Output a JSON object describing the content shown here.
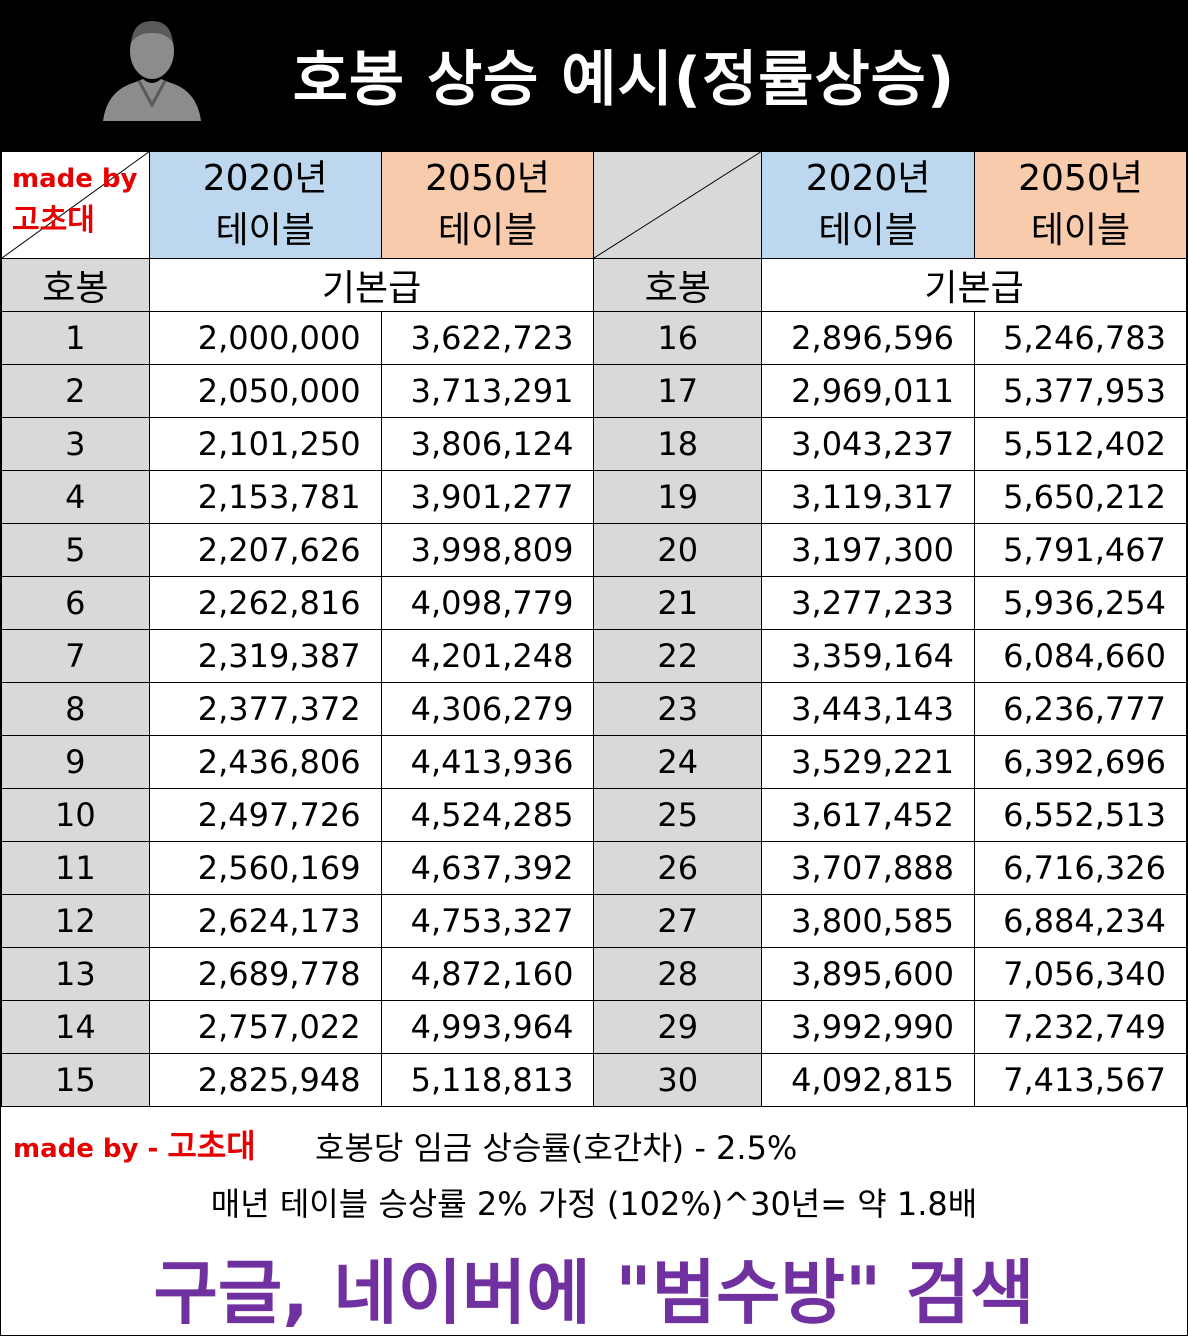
{
  "title": "호봉 상승 예시(정률상승)",
  "madeby_top": {
    "line1": "made by",
    "line2": "고초대"
  },
  "left_block": {
    "col1_header": [
      "2020년",
      "테이블"
    ],
    "col2_header": [
      "2050년",
      "테이블"
    ],
    "step_label": "호봉",
    "pay_label": "기본급",
    "rows": [
      [
        "1",
        "2,000,000",
        "3,622,723"
      ],
      [
        "2",
        "2,050,000",
        "3,713,291"
      ],
      [
        "3",
        "2,101,250",
        "3,806,124"
      ],
      [
        "4",
        "2,153,781",
        "3,901,277"
      ],
      [
        "5",
        "2,207,626",
        "3,998,809"
      ],
      [
        "6",
        "2,262,816",
        "4,098,779"
      ],
      [
        "7",
        "2,319,387",
        "4,201,248"
      ],
      [
        "8",
        "2,377,372",
        "4,306,279"
      ],
      [
        "9",
        "2,436,806",
        "4,413,936"
      ],
      [
        "10",
        "2,497,726",
        "4,524,285"
      ],
      [
        "11",
        "2,560,169",
        "4,637,392"
      ],
      [
        "12",
        "2,624,173",
        "4,753,327"
      ],
      [
        "13",
        "2,689,778",
        "4,872,160"
      ],
      [
        "14",
        "2,757,022",
        "4,993,964"
      ],
      [
        "15",
        "2,825,948",
        "5,118,813"
      ]
    ]
  },
  "right_block": {
    "col1_header": [
      "2020년",
      "테이블"
    ],
    "col2_header": [
      "2050년",
      "테이블"
    ],
    "step_label": "호봉",
    "pay_label": "기본급",
    "rows": [
      [
        "16",
        "2,896,596",
        "5,246,783"
      ],
      [
        "17",
        "2,969,011",
        "5,377,953"
      ],
      [
        "18",
        "3,043,237",
        "5,512,402"
      ],
      [
        "19",
        "3,119,317",
        "5,650,212"
      ],
      [
        "20",
        "3,197,300",
        "5,791,467"
      ],
      [
        "21",
        "3,277,233",
        "5,936,254"
      ],
      [
        "22",
        "3,359,164",
        "6,084,660"
      ],
      [
        "23",
        "3,443,143",
        "6,236,777"
      ],
      [
        "24",
        "3,529,221",
        "6,392,696"
      ],
      [
        "25",
        "3,617,452",
        "6,552,513"
      ],
      [
        "26",
        "3,707,888",
        "6,716,326"
      ],
      [
        "27",
        "3,800,585",
        "6,884,234"
      ],
      [
        "28",
        "3,895,600",
        "7,056,340"
      ],
      [
        "29",
        "3,992,990",
        "7,232,749"
      ],
      [
        "30",
        "4,092,815",
        "7,413,567"
      ]
    ]
  },
  "footer": {
    "madeby_prefix": "made by - ",
    "madeby_name": "고초대",
    "note1": "호봉당 임금 상승률(호간차) - 2.5%",
    "note2": "매년 테이블 승상률 2% 가정 (102%)^30년= 약 1.8배",
    "search": "구글, 네이버에 \"범수방\" 검색"
  },
  "colors": {
    "blue_header": "#bdd7ee",
    "peach_header": "#f8cbad",
    "gray_cell": "#d9d9d9",
    "madeby_red": "#e60000",
    "search_purple": "#7030a0"
  },
  "icons": {
    "avatar": "user-silhouette-icon"
  }
}
